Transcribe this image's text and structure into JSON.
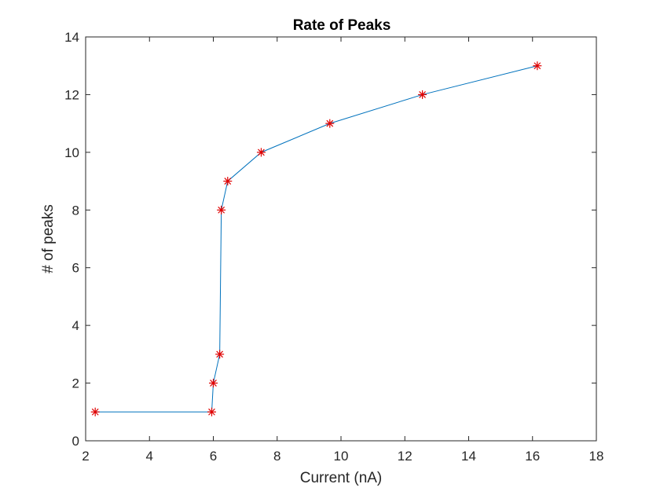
{
  "chart_data": {
    "type": "line",
    "title": "Rate of Peaks",
    "xlabel": "Current (nA)",
    "ylabel": "# of peaks",
    "xlim": [
      2,
      18
    ],
    "ylim": [
      0,
      14
    ],
    "x_ticks": [
      "2",
      "4",
      "6",
      "8",
      "10",
      "12",
      "14",
      "16",
      "18"
    ],
    "y_ticks": [
      "0",
      "2",
      "4",
      "6",
      "8",
      "10",
      "12",
      "14"
    ],
    "grid": false,
    "legend": "none",
    "series": [
      {
        "x": [
          2.3,
          5.95,
          6.0,
          6.2,
          6.25,
          6.45,
          7.5,
          9.65,
          12.55,
          16.15
        ],
        "y": [
          1,
          1,
          2,
          3,
          8,
          9,
          10,
          11,
          12,
          13
        ],
        "line_color": "#0072BD",
        "marker": "asterisk",
        "marker_color": "#E00000"
      }
    ]
  }
}
